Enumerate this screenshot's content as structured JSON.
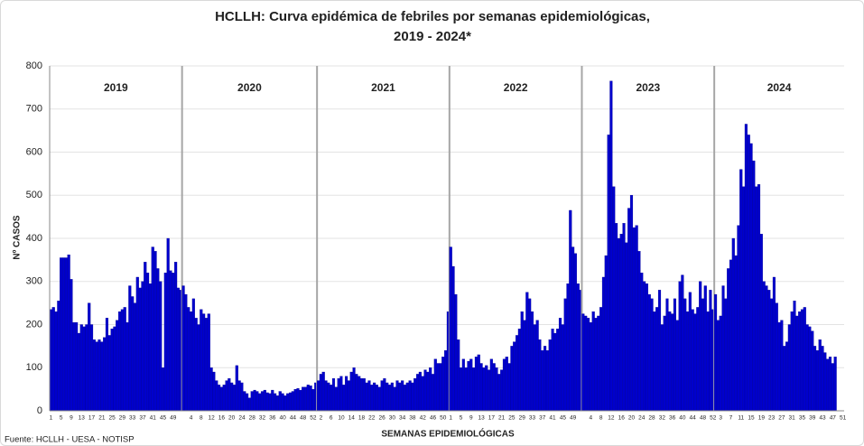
{
  "chart_data": {
    "type": "bar",
    "title": [
      "HCLLH: Curva epidémica de febriles por semanas epidemiológicas,",
      "2019 - 2024*"
    ],
    "y_label": "Nº CASOS",
    "x_label": "SEMANAS EPIDEMIOLÓGICAS",
    "source": "Fuente: HCLLH - UESA - NOTISP",
    "color": "#0000cd",
    "grid": true,
    "ylim": [
      0,
      800
    ],
    "yticks": [
      0,
      100,
      200,
      300,
      400,
      500,
      600,
      700,
      800
    ],
    "groups": [
      {
        "name": "2019",
        "categories": [
          1,
          null,
          null,
          null,
          5,
          null,
          null,
          null,
          9,
          null,
          null,
          null,
          13,
          null,
          null,
          null,
          17,
          null,
          null,
          null,
          21,
          null,
          null,
          null,
          25,
          null,
          null,
          null,
          29,
          null,
          null,
          null,
          33,
          null,
          null,
          null,
          37,
          null,
          null,
          null,
          41,
          null,
          null,
          null,
          45,
          null,
          null,
          null,
          49,
          null,
          null,
          null
        ],
        "values": [
          235,
          240,
          230,
          255,
          355,
          355,
          355,
          362,
          305,
          205,
          205,
          180,
          200,
          195,
          200,
          250,
          200,
          165,
          160,
          165,
          160,
          170,
          215,
          175,
          190,
          195,
          210,
          230,
          235,
          240,
          205,
          290,
          265,
          250,
          310,
          285,
          300,
          345,
          320,
          295,
          380,
          370,
          330,
          300,
          100,
          320,
          400,
          325,
          320,
          345,
          285,
          280
        ]
      },
      {
        "name": "2020",
        "categories": [
          null,
          null,
          null,
          4,
          null,
          null,
          null,
          8,
          null,
          null,
          null,
          12,
          null,
          null,
          null,
          16,
          null,
          null,
          null,
          20,
          null,
          null,
          null,
          24,
          null,
          null,
          null,
          28,
          null,
          null,
          null,
          32,
          null,
          null,
          null,
          36,
          null,
          null,
          null,
          40,
          null,
          null,
          null,
          44,
          null,
          null,
          null,
          48,
          null,
          null,
          null,
          52,
          null
        ],
        "values": [
          290,
          270,
          240,
          230,
          260,
          215,
          200,
          235,
          225,
          215,
          225,
          100,
          90,
          70,
          60,
          55,
          60,
          70,
          75,
          65,
          60,
          105,
          70,
          65,
          45,
          40,
          30,
          45,
          48,
          45,
          40,
          45,
          48,
          42,
          40,
          48,
          40,
          35,
          45,
          40,
          35,
          40,
          42,
          45,
          50,
          52,
          48,
          55,
          55,
          60,
          58,
          50,
          65
        ]
      },
      {
        "name": "2021",
        "categories": [
          null,
          2,
          null,
          null,
          null,
          6,
          null,
          null,
          null,
          10,
          null,
          null,
          null,
          14,
          null,
          null,
          null,
          18,
          null,
          null,
          null,
          22,
          null,
          null,
          null,
          26,
          null,
          null,
          null,
          30,
          null,
          null,
          null,
          34,
          null,
          null,
          null,
          38,
          null,
          null,
          null,
          42,
          null,
          null,
          null,
          46,
          null,
          null,
          null,
          50,
          null,
          null
        ],
        "values": [
          70,
          85,
          90,
          70,
          65,
          60,
          75,
          55,
          75,
          80,
          60,
          80,
          70,
          90,
          100,
          85,
          80,
          75,
          75,
          65,
          70,
          60,
          65,
          60,
          55,
          70,
          75,
          65,
          60,
          65,
          55,
          70,
          65,
          70,
          60,
          65,
          70,
          65,
          75,
          85,
          90,
          80,
          95,
          90,
          100,
          85,
          120,
          110,
          110,
          125,
          140,
          230
        ]
      },
      {
        "name": "2022",
        "categories": [
          1,
          null,
          null,
          null,
          5,
          null,
          null,
          null,
          9,
          null,
          null,
          null,
          13,
          null,
          null,
          null,
          17,
          null,
          null,
          null,
          21,
          null,
          null,
          null,
          25,
          null,
          null,
          null,
          29,
          null,
          null,
          null,
          33,
          null,
          null,
          null,
          37,
          null,
          null,
          null,
          41,
          null,
          null,
          null,
          45,
          null,
          null,
          null,
          49,
          null,
          null,
          null
        ],
        "values": [
          380,
          335,
          270,
          165,
          100,
          120,
          100,
          115,
          120,
          100,
          125,
          130,
          110,
          100,
          105,
          95,
          120,
          110,
          100,
          85,
          95,
          120,
          125,
          110,
          150,
          160,
          175,
          190,
          230,
          210,
          275,
          260,
          230,
          200,
          210,
          165,
          140,
          150,
          140,
          165,
          190,
          180,
          190,
          215,
          200,
          260,
          295,
          465,
          380,
          365,
          295,
          280
        ]
      },
      {
        "name": "2023",
        "categories": [
          null,
          null,
          null,
          4,
          null,
          null,
          null,
          8,
          null,
          null,
          null,
          12,
          null,
          null,
          null,
          16,
          null,
          null,
          null,
          20,
          null,
          null,
          null,
          24,
          null,
          null,
          null,
          28,
          null,
          null,
          null,
          32,
          null,
          null,
          null,
          36,
          null,
          null,
          null,
          40,
          null,
          null,
          null,
          44,
          null,
          null,
          null,
          48,
          null,
          null,
          null,
          52
        ],
        "values": [
          225,
          220,
          215,
          205,
          230,
          215,
          220,
          240,
          310,
          360,
          640,
          765,
          520,
          435,
          400,
          410,
          435,
          390,
          470,
          500,
          425,
          430,
          370,
          320,
          300,
          295,
          270,
          260,
          230,
          240,
          280,
          200,
          220,
          260,
          230,
          225,
          260,
          210,
          300,
          315,
          260,
          230,
          275,
          235,
          225,
          240,
          300,
          260,
          290,
          230,
          280,
          235
        ]
      },
      {
        "name": "2024",
        "categories": [
          null,
          null,
          3,
          null,
          null,
          null,
          7,
          null,
          null,
          null,
          11,
          null,
          null,
          null,
          15,
          null,
          null,
          null,
          19,
          null,
          null,
          null,
          23,
          null,
          null,
          null,
          27,
          null,
          null,
          null,
          31,
          null,
          null,
          null,
          35,
          null,
          null,
          null,
          39,
          null,
          null,
          null,
          43,
          null,
          null,
          null,
          47,
          null,
          null,
          null,
          51
        ],
        "values": [
          270,
          210,
          220,
          290,
          260,
          330,
          350,
          400,
          360,
          430,
          560,
          520,
          665,
          640,
          620,
          580,
          520,
          525,
          410,
          300,
          290,
          280,
          260,
          310,
          250,
          205,
          210,
          150,
          160,
          200,
          230,
          255,
          220,
          230,
          235,
          240,
          200,
          195,
          185,
          150,
          140,
          165,
          150,
          135,
          120,
          125,
          110,
          125,
          null,
          null,
          null
        ]
      }
    ]
  }
}
